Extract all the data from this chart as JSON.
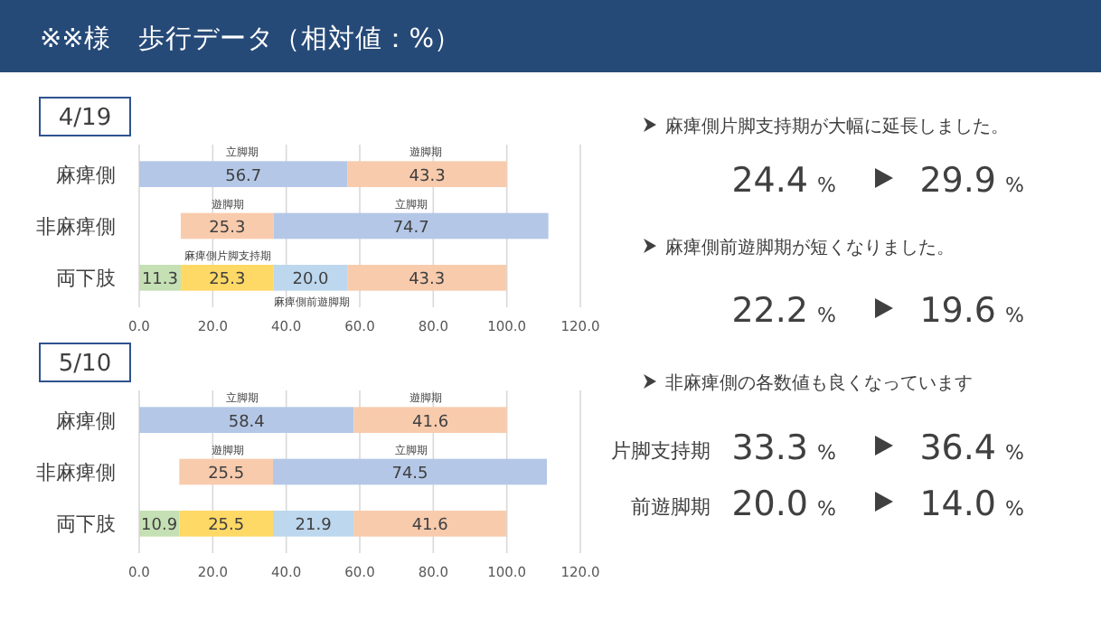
{
  "chart_data": [
    {
      "type": "other",
      "title": "※※様　歩行データ（相対値：%）",
      "annotations": [
        "麻痺側片脚支持期が大幅に延長しました。",
        "24.4 %",
        "29.9 %",
        "麻痺側前遊脚期が短くなりました。",
        "22.2 %",
        "19.6 %",
        "非麻痺側の各数値も良くなっています",
        "片脚支持期",
        "33.3 %",
        "36.4 %",
        "前遊脚期",
        "20.0 %",
        "14.0 %"
      ]
    },
    {
      "type": "bar",
      "title": "4/19",
      "orientation": "horizontal",
      "categories": [
        "麻痺側",
        "非麻痺側",
        "両下肢"
      ],
      "series": [
        {
          "base": [
            0,
            11.3,
            0
          ],
          "values": [
            56.7,
            25.3,
            11.3
          ],
          "value_labels": [
            "56.7",
            "25.3",
            "11.3"
          ],
          "colors": [
            "#b4c7e7",
            "#f8cbad",
            "#c5e0b4"
          ]
        },
        {
          "base": [
            56.7,
            36.6,
            11.3
          ],
          "values": [
            43.3,
            74.7,
            25.3
          ],
          "value_labels": [
            "43.3",
            "74.7",
            "25.3"
          ],
          "colors": [
            "#f8cbad",
            "#b4c7e7",
            "#ffd966"
          ]
        },
        {
          "base": [
            null,
            null,
            36.6
          ],
          "values": [
            null,
            null,
            20.0
          ],
          "value_labels": [
            null,
            null,
            "20.0"
          ],
          "colors": [
            null,
            null,
            "#bdd7ee"
          ]
        },
        {
          "base": [
            null,
            null,
            56.6
          ],
          "values": [
            null,
            null,
            43.3
          ],
          "value_labels": [
            null,
            null,
            "43.3"
          ],
          "colors": [
            null,
            null,
            "#f8cbad"
          ]
        }
      ],
      "xlim": [
        0,
        120
      ],
      "xticks": [
        {
          "value": 0,
          "label": "0.0"
        },
        {
          "value": 20,
          "label": "20.0"
        },
        {
          "value": 40,
          "label": "40.0"
        },
        {
          "value": 60,
          "label": "60.0"
        },
        {
          "value": 80,
          "label": "80.0"
        },
        {
          "value": 100,
          "label": "100.0"
        },
        {
          "value": 120,
          "label": "120.0"
        }
      ],
      "grid": "x",
      "annotations": [
        "立脚期",
        "遊脚期",
        "遊脚期",
        "立脚期",
        "麻痺側片脚支持期",
        "麻痺側前遊脚期"
      ]
    },
    {
      "type": "bar",
      "title": "5/10",
      "orientation": "horizontal",
      "categories": [
        "麻痺側",
        "非麻痺側",
        "両下肢"
      ],
      "series": [
        {
          "base": [
            0,
            10.9,
            0
          ],
          "values": [
            58.4,
            25.5,
            10.9
          ],
          "value_labels": [
            "58.4",
            "25.5",
            "10.9"
          ],
          "colors": [
            "#b4c7e7",
            "#f8cbad",
            "#c5e0b4"
          ]
        },
        {
          "base": [
            58.4,
            36.4,
            10.9
          ],
          "values": [
            41.6,
            74.5,
            25.5
          ],
          "value_labels": [
            "41.6",
            "74.5",
            "25.5"
          ],
          "colors": [
            "#f8cbad",
            "#b4c7e7",
            "#ffd966"
          ]
        },
        {
          "base": [
            null,
            null,
            36.4
          ],
          "values": [
            null,
            null,
            21.9
          ],
          "value_labels": [
            null,
            null,
            "21.9"
          ],
          "colors": [
            null,
            null,
            "#bdd7ee"
          ]
        },
        {
          "base": [
            null,
            null,
            58.3
          ],
          "values": [
            null,
            null,
            41.6
          ],
          "value_labels": [
            null,
            null,
            "41.6"
          ],
          "colors": [
            null,
            null,
            "#f8cbad"
          ]
        }
      ],
      "xlim": [
        0,
        120
      ],
      "xticks": [
        {
          "value": 0,
          "label": "0.0"
        },
        {
          "value": 20,
          "label": "20.0"
        },
        {
          "value": 40,
          "label": "40.0"
        },
        {
          "value": 60,
          "label": "60.0"
        },
        {
          "value": 80,
          "label": "80.0"
        },
        {
          "value": 100,
          "label": "100.0"
        },
        {
          "value": 120,
          "label": "120.0"
        }
      ],
      "grid": "x",
      "annotations": [
        "立脚期",
        "遊脚期",
        "遊脚期",
        "立脚期"
      ]
    }
  ]
}
